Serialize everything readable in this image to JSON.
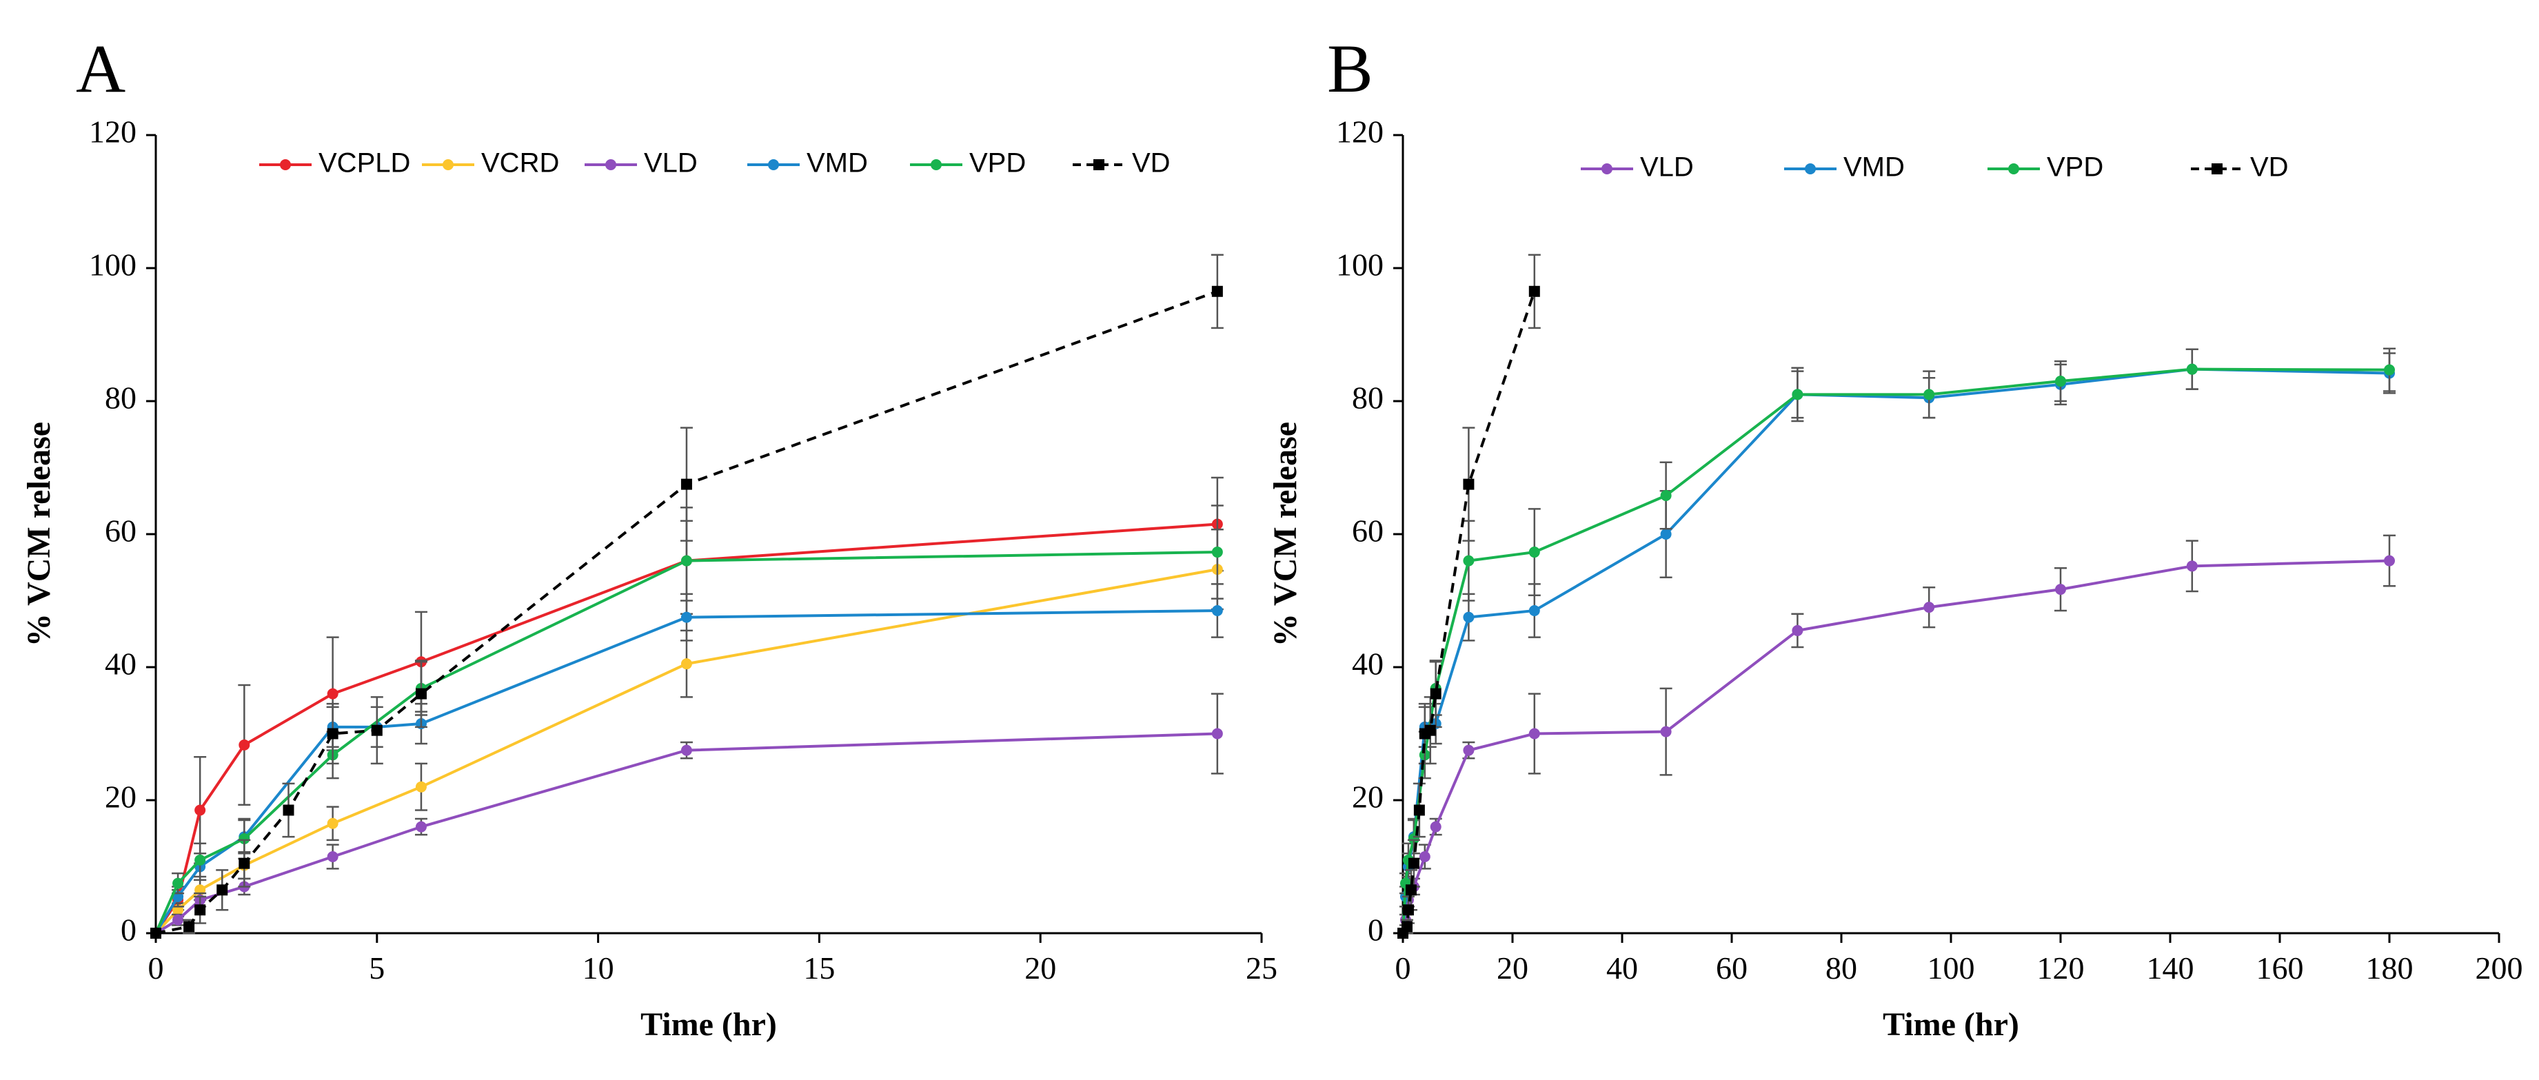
{
  "chart_data": [
    {
      "type": "line",
      "panel": "A",
      "xlabel": "Time (hr)",
      "ylabel": "% VCM release",
      "xlim": [
        0,
        25
      ],
      "ylim": [
        0,
        120
      ],
      "xticks": [
        "0",
        "5",
        "10",
        "15",
        "20",
        "25"
      ],
      "yticks": [
        "0",
        "20",
        "40",
        "60",
        "80",
        "100",
        "120"
      ],
      "legend": "top",
      "series": [
        {
          "name": "VCPLD",
          "color": "#e8242b",
          "dash": false,
          "marker": "circle",
          "x": [
            0,
            0.5,
            1,
            2,
            4,
            6,
            12,
            24
          ],
          "y": [
            0,
            5,
            18.5,
            28.3,
            36,
            40.8,
            56,
            61.5
          ],
          "err": [
            0,
            1.5,
            8,
            9,
            8.5,
            7.5,
            8,
            7
          ]
        },
        {
          "name": "VCRD",
          "color": "#fcc52d",
          "dash": false,
          "marker": "circle",
          "x": [
            0,
            0.5,
            1,
            2,
            4,
            6,
            12,
            24
          ],
          "y": [
            0,
            3.5,
            6.5,
            10.2,
            16.5,
            22,
            40.5,
            54.7
          ],
          "err": [
            0,
            1,
            1.5,
            2,
            2.5,
            3.5,
            5,
            6
          ]
        },
        {
          "name": "VLD",
          "color": "#8f4ebd",
          "dash": false,
          "marker": "circle",
          "x": [
            0,
            0.5,
            1,
            2,
            4,
            6,
            12,
            24
          ],
          "y": [
            0,
            2,
            5,
            7,
            11.5,
            16,
            27.5,
            30
          ],
          "err": [
            0,
            0.8,
            1,
            1.2,
            1.8,
            1.2,
            1.2,
            6
          ]
        },
        {
          "name": "VMD",
          "color": "#1b87cc",
          "dash": false,
          "marker": "circle",
          "x": [
            0,
            0.5,
            1,
            2,
            4,
            5,
            6,
            12,
            24
          ],
          "y": [
            0,
            5.5,
            10,
            14.5,
            31,
            31,
            31.5,
            47.5,
            48.5
          ],
          "err": [
            0,
            1.5,
            2,
            2.5,
            3,
            3,
            3,
            3.5,
            4
          ]
        },
        {
          "name": "VPD",
          "color": "#18b34f",
          "dash": false,
          "marker": "circle",
          "x": [
            0,
            0.5,
            1,
            2,
            4,
            6,
            12,
            24
          ],
          "y": [
            0,
            7.5,
            11,
            14.2,
            26.8,
            36.8,
            56,
            57.3
          ],
          "err": [
            0,
            1.5,
            2.5,
            3,
            3.5,
            4,
            6,
            7
          ]
        },
        {
          "name": "VD",
          "color": "#000000",
          "dash": true,
          "marker": "square",
          "x": [
            0,
            0.75,
            1,
            1.5,
            2,
            3,
            4,
            5,
            6,
            12,
            24
          ],
          "y": [
            0,
            1,
            3.5,
            6.5,
            10.5,
            18.5,
            30,
            30.5,
            36,
            67.5,
            96.5
          ],
          "err": [
            0,
            1,
            2,
            3,
            3.5,
            4,
            4.5,
            5,
            5,
            8.5,
            5.5
          ]
        }
      ]
    },
    {
      "type": "line",
      "panel": "B",
      "xlabel": "Time (hr)",
      "ylabel": "% VCM release",
      "xlim": [
        0,
        200
      ],
      "ylim": [
        0,
        120
      ],
      "xticks": [
        "0",
        "20",
        "40",
        "60",
        "80",
        "100",
        "120",
        "140",
        "160",
        "180",
        "200"
      ],
      "yticks": [
        "0",
        "20",
        "40",
        "60",
        "80",
        "100",
        "120"
      ],
      "legend": "top",
      "series": [
        {
          "name": "VLD",
          "color": "#8f4ebd",
          "dash": false,
          "marker": "circle",
          "x": [
            0,
            0.5,
            1,
            2,
            4,
            6,
            12,
            24,
            48,
            72,
            96,
            120,
            144,
            180
          ],
          "y": [
            0,
            2,
            5,
            7,
            11.5,
            16,
            27.5,
            30,
            30.3,
            45.5,
            49,
            51.7,
            55.2,
            56
          ],
          "err": [
            0,
            0.8,
            1,
            1.2,
            1.8,
            1.2,
            1.2,
            6,
            6.5,
            2.5,
            3,
            3.2,
            3.8,
            3.8
          ]
        },
        {
          "name": "VMD",
          "color": "#1b87cc",
          "dash": false,
          "marker": "circle",
          "x": [
            0,
            0.5,
            1,
            2,
            4,
            5,
            6,
            12,
            24,
            48,
            72,
            96,
            120,
            144,
            180
          ],
          "y": [
            0,
            5.5,
            10,
            14.5,
            31,
            31,
            31.5,
            47.5,
            48.5,
            60,
            81,
            80.5,
            82.5,
            84.8,
            84.2
          ],
          "err": [
            0,
            1.5,
            2,
            2.5,
            3,
            3,
            3,
            3.5,
            4,
            6.5,
            3.5,
            3,
            3,
            3,
            3
          ]
        },
        {
          "name": "VPD",
          "color": "#18b34f",
          "dash": false,
          "marker": "circle",
          "x": [
            0,
            0.5,
            1,
            2,
            4,
            6,
            12,
            24,
            48,
            72,
            96,
            120,
            144,
            180
          ],
          "y": [
            0,
            7.5,
            11,
            14.2,
            26.8,
            36.8,
            56,
            57.3,
            65.8,
            81,
            81,
            83,
            84.8,
            84.7
          ],
          "err": [
            0,
            1.5,
            2.5,
            3,
            3.5,
            4,
            6,
            6.5,
            5,
            4,
            3.5,
            3,
            3,
            3.2
          ]
        },
        {
          "name": "VD",
          "color": "#000000",
          "dash": true,
          "marker": "square",
          "x": [
            0,
            0.75,
            1,
            1.5,
            2,
            3,
            4,
            5,
            6,
            12,
            24
          ],
          "y": [
            0,
            1,
            3.5,
            6.5,
            10.5,
            18.5,
            30,
            30.5,
            36,
            67.5,
            96.5
          ],
          "err": [
            0,
            1,
            2,
            3,
            3.5,
            4,
            4.5,
            5,
            5,
            8.5,
            5.5
          ]
        }
      ]
    }
  ]
}
